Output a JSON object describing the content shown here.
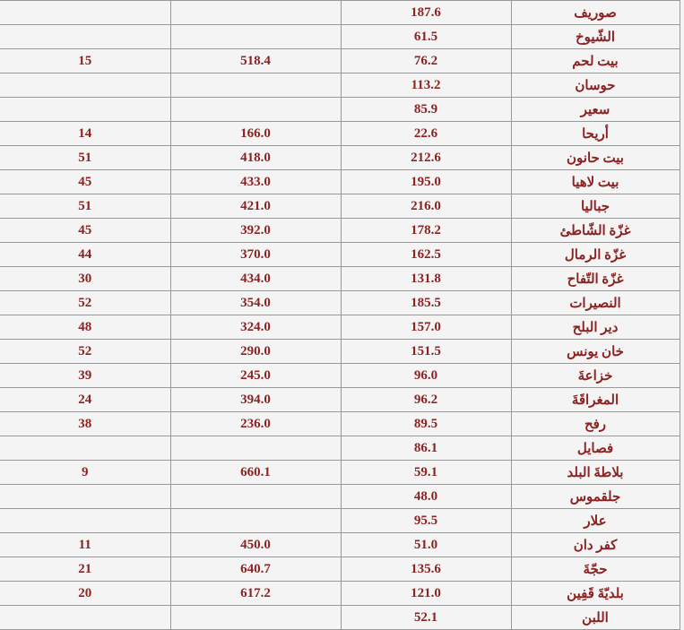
{
  "table": {
    "text_color": "#8b2323",
    "background_color": "#f4f4f4",
    "border_color": "#999999",
    "rows": [
      {
        "name": "صوريف",
        "v1": "187.6",
        "v2": "",
        "v3": ""
      },
      {
        "name": "الشّيوخ",
        "v1": "61.5",
        "v2": "",
        "v3": ""
      },
      {
        "name": "بيت لحم",
        "v1": "76.2",
        "v2": "518.4",
        "v3": "15"
      },
      {
        "name": "حوسان",
        "v1": "113.2",
        "v2": "",
        "v3": ""
      },
      {
        "name": "سعير",
        "v1": "85.9",
        "v2": "",
        "v3": ""
      },
      {
        "name": "أريحا",
        "v1": "22.6",
        "v2": "166.0",
        "v3": "14"
      },
      {
        "name": "بيت حانون",
        "v1": "212.6",
        "v2": "418.0",
        "v3": "51"
      },
      {
        "name": "بيت لاهيا",
        "v1": "195.0",
        "v2": "433.0",
        "v3": "45"
      },
      {
        "name": "جباليا",
        "v1": "216.0",
        "v2": "421.0",
        "v3": "51"
      },
      {
        "name": "غزّة الشّاطئ",
        "v1": "178.2",
        "v2": "392.0",
        "v3": "45"
      },
      {
        "name": "غزّة الرمال",
        "v1": "162.5",
        "v2": "370.0",
        "v3": "44"
      },
      {
        "name": "غزّة التّفاح",
        "v1": "131.8",
        "v2": "434.0",
        "v3": "30"
      },
      {
        "name": "النصيرات",
        "v1": "185.5",
        "v2": "354.0",
        "v3": "52"
      },
      {
        "name": "دير البلح",
        "v1": "157.0",
        "v2": "324.0",
        "v3": "48"
      },
      {
        "name": "خان يونس",
        "v1": "151.5",
        "v2": "290.0",
        "v3": "52"
      },
      {
        "name": "خزاعةَ",
        "v1": "96.0",
        "v2": "245.0",
        "v3": "39"
      },
      {
        "name": "المغراقَةَ",
        "v1": "96.2",
        "v2": "394.0",
        "v3": "24"
      },
      {
        "name": "رفح",
        "v1": "89.5",
        "v2": "236.0",
        "v3": "38"
      },
      {
        "name": "فصايل",
        "v1": "86.1",
        "v2": "",
        "v3": ""
      },
      {
        "name": "بلاطةَ البلد",
        "v1": "59.1",
        "v2": "660.1",
        "v3": "9"
      },
      {
        "name": "جلقموس",
        "v1": "48.0",
        "v2": "",
        "v3": ""
      },
      {
        "name": "علار",
        "v1": "95.5",
        "v2": "",
        "v3": ""
      },
      {
        "name": "كفر دان",
        "v1": "51.0",
        "v2": "450.0",
        "v3": "11"
      },
      {
        "name": "حجّةَ",
        "v1": "135.6",
        "v2": "640.7",
        "v3": "21"
      },
      {
        "name": "بلديّةَ قَفِين",
        "v1": "121.0",
        "v2": "617.2",
        "v3": "20"
      },
      {
        "name": "اللبن",
        "v1": "52.1",
        "v2": "",
        "v3": ""
      }
    ]
  }
}
